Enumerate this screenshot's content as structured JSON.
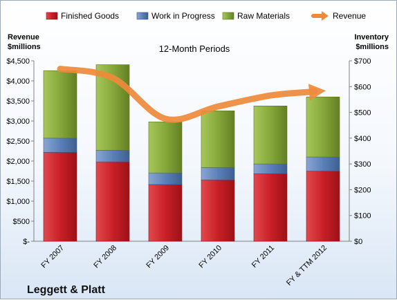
{
  "chart_data": {
    "type": "bar",
    "stacked": true,
    "title": "12-Month Periods",
    "company": "Leggett & Platt",
    "categories": [
      "FY 2007",
      "FY 2008",
      "FY 2009",
      "FY 2010",
      "FY 2011",
      "FY & TTM 2012"
    ],
    "series": [
      {
        "name": "Finished Goods",
        "color": "#cc2027",
        "axis": "right",
        "values": [
          345,
          308,
          220,
          238,
          262,
          272
        ]
      },
      {
        "name": "Work in Progress",
        "color": "#5a7fb8",
        "axis": "right",
        "values": [
          55,
          45,
          45,
          48,
          38,
          55
        ]
      },
      {
        "name": "Raw Materials",
        "color": "#86a83a",
        "axis": "right",
        "values": [
          262,
          332,
          198,
          220,
          225,
          233
        ]
      }
    ],
    "line_series": {
      "name": "Revenue",
      "color": "#ee8a3b",
      "axis": "left",
      "values": [
        4300,
        4075,
        3055,
        3360,
        3636,
        3750
      ]
    },
    "left_axis": {
      "title_line1": "Revenue",
      "title_line2": "$millions",
      "range": [
        0,
        4500
      ],
      "ticks": [
        0,
        500,
        1000,
        1500,
        2000,
        2500,
        3000,
        3500,
        4000,
        4500
      ],
      "tick_labels": [
        "$-",
        "$500",
        "$1,000",
        "$1,500",
        "$2,000",
        "$2,500",
        "$3,000",
        "$3,500",
        "$4,000",
        "$4,500"
      ]
    },
    "right_axis": {
      "title_line1": "Inventory",
      "title_line2": "$millions",
      "range": [
        0,
        700
      ],
      "ticks": [
        0,
        100,
        200,
        300,
        400,
        500,
        600,
        700
      ],
      "tick_labels": [
        "$0",
        "$100",
        "$200",
        "$300",
        "$400",
        "$500",
        "$600",
        "$700"
      ]
    },
    "grid": false,
    "legend_position": "top"
  }
}
